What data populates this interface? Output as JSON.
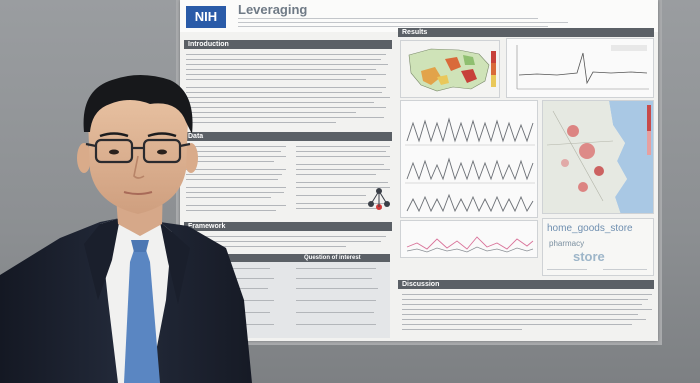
{
  "poster": {
    "logo": "NIH",
    "title_fragment": "Leveraging",
    "sections": {
      "introduction": "Introduction",
      "data": "Data",
      "framework": "Framework",
      "results": "Results",
      "discussion": "Discussion"
    },
    "framework_table_header": "Question of interest",
    "word_cloud": [
      "home_goods_store",
      "pharmacy",
      "store"
    ]
  },
  "colors": {
    "section_header": "#5b6066",
    "logo_blue": "#2a5ba8",
    "suit": "#1d2230",
    "tie": "#5a86c2"
  }
}
